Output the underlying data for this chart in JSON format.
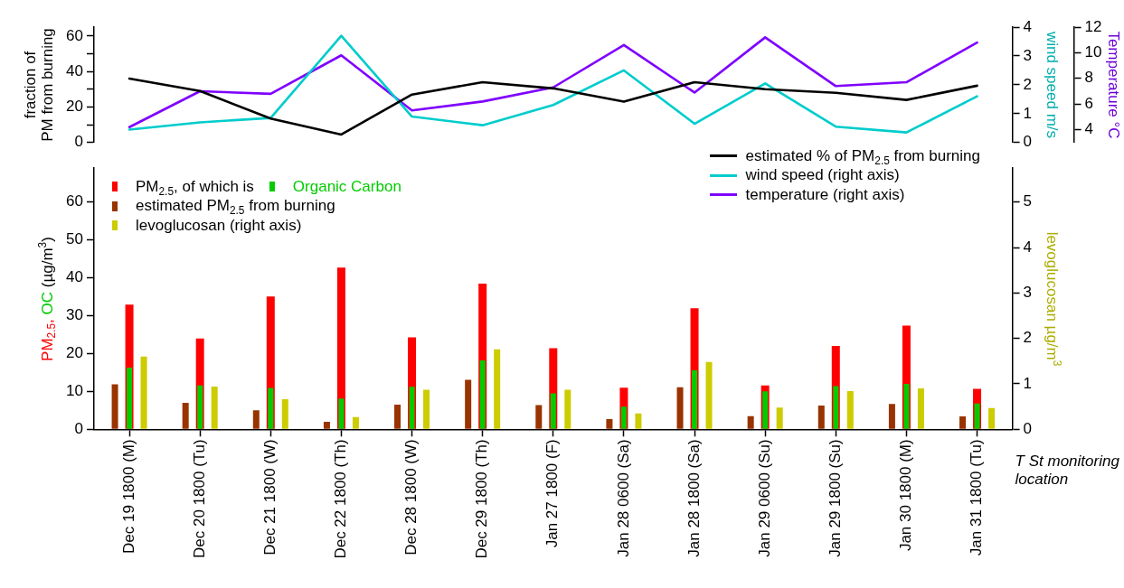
{
  "chart_data": [
    {
      "type": "line",
      "ylabel": "fraction of\nPM from burning",
      "y2label": "wind speed m/s",
      "y3label": "Temperature °C",
      "categories": [
        null,
        null,
        null,
        null,
        null,
        null,
        null,
        null,
        null,
        null,
        null,
        null,
        null
      ],
      "series": [
        {
          "name": "estimated % of PM$_{2.5}$ from burning",
          "color": "#000000",
          "values": [
            36,
            29,
            13.5,
            4.5,
            27,
            34,
            30.5,
            23,
            34,
            30,
            28,
            24,
            32
          ]
        },
        {
          "name": "wind speed (right axis)",
          "color": "#00cccc",
          "axis": "y2",
          "values": [
            0.45,
            0.7,
            0.85,
            3.7,
            0.9,
            0.6,
            1.3,
            2.5,
            0.65,
            2.05,
            0.55,
            0.35,
            1.6
          ]
        },
        {
          "name": "temperature (right axis)",
          "color": "#7f00ff",
          "axis": "y3",
          "values": [
            4.2,
            7.0,
            6.8,
            9.8,
            5.5,
            6.2,
            7.3,
            10.6,
            6.9,
            11.2,
            7.4,
            7.7,
            10.8
          ]
        }
      ],
      "ylim": [
        0,
        65
      ],
      "yticks": [
        0,
        {
          "value": 10,
          "label": null
        },
        20,
        {
          "value": 30,
          "label": null
        },
        40,
        {
          "value": 50,
          "label": null
        },
        60
      ],
      "y2lim": [
        0,
        4
      ],
      "y2ticks": [
        0,
        1,
        2,
        3,
        4
      ],
      "y3lim": [
        3,
        12
      ],
      "y3ticks": [
        4,
        6,
        8,
        10,
        12
      ],
      "legend": "bottom right",
      "tick_labels": "y"
    },
    {
      "type": "bar",
      "ylabel": "PM$_{2.5}$, OC (µg/m$^{3}$)",
      "y2label": "levoglucosan µg/m$^{3}$",
      "xlabel": "T St monitoring location",
      "categories": [
        "Dec 19 1800 (M)",
        "Dec 20 1800 (Tu)",
        "Dec 21 1800 (W)",
        "Dec 22 1800 (Th)",
        "Dec 28 1800 (W)",
        "Dec 29 1800 (Th)",
        "Jan 27 1800 (F)",
        "Jan 28 0600 (Sa)",
        "Jan 28 1800 (Sa)",
        "Jan 29 0600 (Su)",
        "Jan 29 1800 (Su)",
        "Jan 30 1800 (M)",
        "Jan 31 1800 (Tu)"
      ],
      "series": [
        {
          "name": "estimated PM$_{2.5}$ from burning",
          "color": "#993300",
          "values": [
            11.9,
            7.0,
            5.0,
            2.0,
            6.5,
            13.1,
            6.4,
            2.7,
            11.1,
            3.5,
            6.3,
            6.7,
            3.4
          ]
        },
        {
          "name": "Organic Carbon",
          "color": "#00cc00",
          "values": [
            16.3,
            11.6,
            10.9,
            8.1,
            11.2,
            18.2,
            9.5,
            6.0,
            15.6,
            10.0,
            11.4,
            12.0,
            6.8
          ]
        },
        {
          "name": "PM$_{2.5}$, of which is",
          "color": "#ff0000",
          "values": [
            32.9,
            24.0,
            35.1,
            42.7,
            24.3,
            38.5,
            21.4,
            11.0,
            32.0,
            11.6,
            22.0,
            27.4,
            10.7
          ]
        },
        {
          "name": "levoglucosan (right axis)",
          "color": "#cccc00",
          "axis": "y2",
          "values": [
            1.6,
            0.94,
            0.66,
            0.27,
            0.87,
            1.76,
            0.87,
            0.35,
            1.48,
            0.48,
            0.84,
            0.9,
            0.47
          ]
        }
      ],
      "ylim": [
        0,
        69
      ],
      "yticks": [
        0,
        10,
        20,
        30,
        40,
        50,
        60
      ],
      "y2lim": [
        0,
        5.75
      ],
      "y2ticks": [
        0,
        1,
        2,
        3,
        4,
        5
      ],
      "legend": "top left"
    }
  ]
}
